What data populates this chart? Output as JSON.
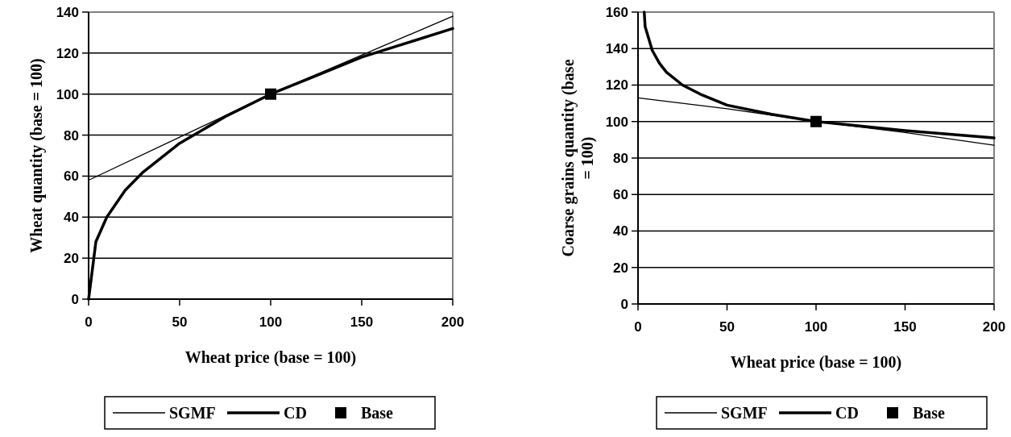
{
  "chart_data": [
    {
      "type": "line",
      "xlabel": "Wheat price (base = 100)",
      "ylabel": "Wheat quantity (base = 100)",
      "xlim": [
        0,
        200
      ],
      "xticks": [
        0,
        50,
        100,
        150,
        200
      ],
      "ylim": [
        0,
        140
      ],
      "yticks": [
        0,
        20,
        40,
        60,
        80,
        100,
        120,
        140
      ],
      "grid": "y",
      "legend": "bottom",
      "series": [
        {
          "name": "SGMF",
          "color": "#000000",
          "x": [
            0,
            50,
            100,
            150,
            200
          ],
          "values": [
            58,
            79,
            100,
            119,
            138
          ]
        },
        {
          "name": "CD",
          "color": "#000000",
          "x": [
            0,
            4,
            10,
            20,
            30,
            50,
            75,
            100,
            125,
            150,
            175,
            200
          ],
          "values": [
            0,
            28,
            40,
            53,
            62,
            76,
            89,
            100,
            109,
            118,
            125,
            132
          ]
        },
        {
          "name": "Base",
          "type": "scatter",
          "marker": "square",
          "color": "#000000",
          "x": [
            100
          ],
          "values": [
            100
          ]
        }
      ]
    },
    {
      "type": "line",
      "xlabel": "Wheat price (base = 100)",
      "ylabel": "Coarse grains quantity (base = 100)",
      "xlim": [
        0,
        200
      ],
      "xticks": [
        0,
        50,
        100,
        150,
        200
      ],
      "ylim": [
        0,
        160
      ],
      "yticks": [
        0,
        20,
        40,
        60,
        80,
        100,
        120,
        140,
        160
      ],
      "grid": "y",
      "legend": "bottom",
      "series": [
        {
          "name": "SGMF",
          "color": "#000000",
          "x": [
            0,
            50,
            100,
            150,
            200
          ],
          "values": [
            113,
            107,
            100,
            94,
            87
          ]
        },
        {
          "name": "CD",
          "color": "#000000",
          "x": [
            3.5,
            4,
            8,
            12,
            16,
            25,
            35,
            50,
            75,
            100,
            150,
            200
          ],
          "values": [
            160,
            152,
            139,
            132,
            127,
            120,
            115,
            109,
            104,
            100,
            95,
            91
          ]
        },
        {
          "name": "Base",
          "type": "scatter",
          "marker": "square",
          "color": "#000000",
          "x": [
            100
          ],
          "values": [
            100
          ]
        }
      ]
    }
  ]
}
